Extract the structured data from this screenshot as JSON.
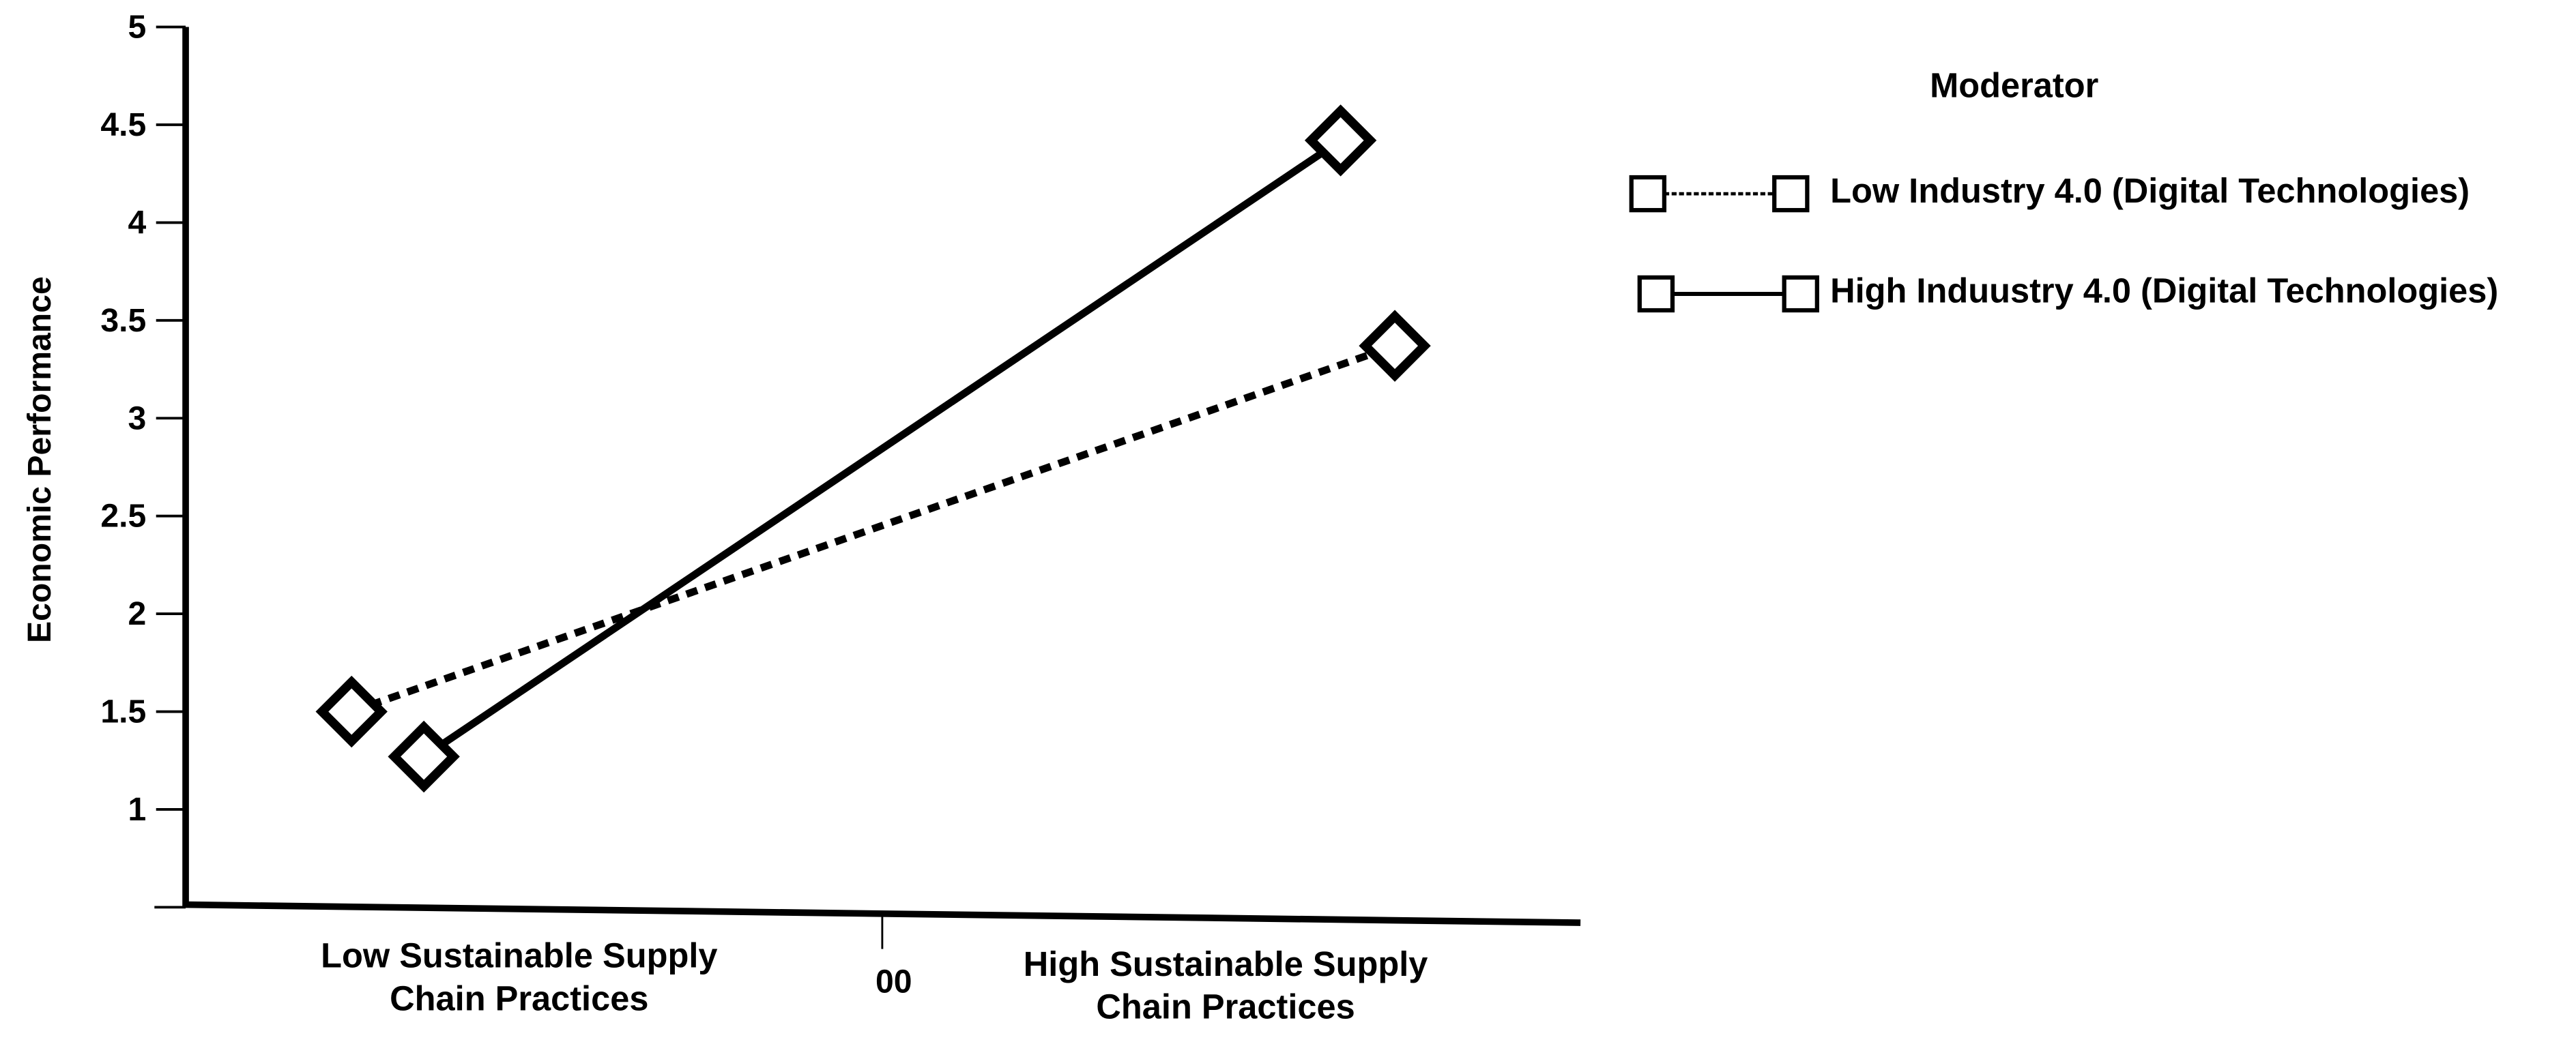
{
  "chart_data": {
    "type": "line",
    "title": "",
    "xlabel": "",
    "ylabel": "Economic Performance",
    "ylim": [
      0.5,
      5
    ],
    "yticks": [
      {
        "value": 1,
        "label": "1"
      },
      {
        "value": 1.5,
        "label": "1.5"
      },
      {
        "value": 2,
        "label": "2"
      },
      {
        "value": 2.5,
        "label": "2.5"
      },
      {
        "value": 3,
        "label": "3"
      },
      {
        "value": 3.5,
        "label": "3.5"
      },
      {
        "value": 4,
        "label": "4"
      },
      {
        "value": 4.5,
        "label": "4.5"
      },
      {
        "value": 5,
        "label": "5"
      }
    ],
    "categories": [
      "Low Sustainable Supply Chain Practices",
      "High Sustainable Supply Chain Practices"
    ],
    "category_lines": [
      [
        "Low Sustainable Supply",
        "Chain Practices"
      ],
      [
        "High Sustainable Supply",
        "Chain Practices"
      ]
    ],
    "x_center_label": "00",
    "grid": false,
    "legend_title": "Moderator",
    "legend_position": "top-right",
    "series": [
      {
        "name": "Low Industry 4.0 (Digital Technologies)",
        "values": [
          1.5,
          3.37
        ],
        "line_style": "dashed",
        "color": "#000000"
      },
      {
        "name": "High Induustry 4.0 (Digital Technologies)",
        "values": [
          1.27,
          4.42
        ],
        "line_style": "solid",
        "color": "#000000"
      }
    ]
  }
}
